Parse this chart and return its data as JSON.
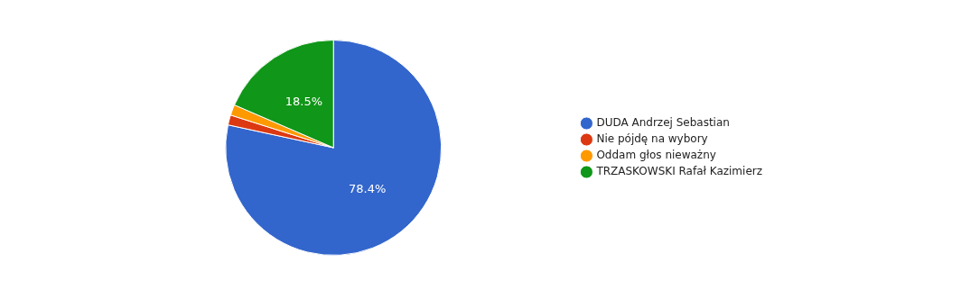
{
  "chart_data": {
    "type": "pie",
    "categories": [
      "DUDA Andrzej Sebastian",
      "Nie pójdę na wybory",
      "Oddam głos nieważny",
      "TRZASKOWSKI Rafał Kazimierz"
    ],
    "values": [
      78.4,
      1.5,
      1.6,
      18.5
    ],
    "colors": [
      "#3366cc",
      "#dc3912",
      "#ff9900",
      "#109618"
    ],
    "value_labels": [
      "78.4%",
      null,
      null,
      "18.5%"
    ],
    "legend": "right"
  }
}
